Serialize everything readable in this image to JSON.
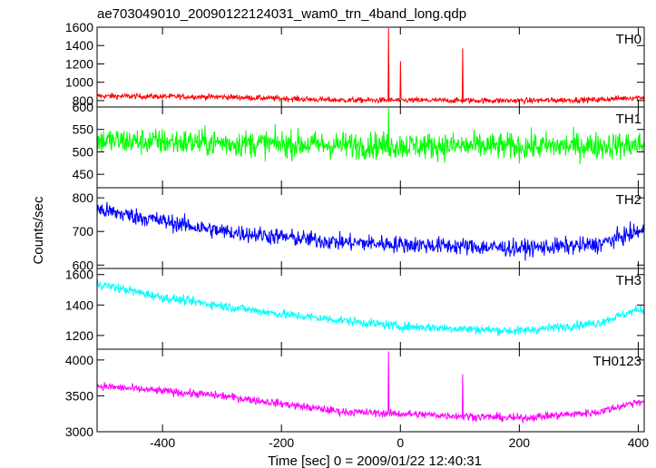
{
  "title": "ae703049010_20090122124031_wam0_trn_4band_long.qdp",
  "xlabel": "Time [sec] 0 = 2009/01/22 12:40:31",
  "ylabel": "Counts/sec",
  "chart_data": {
    "type": "line",
    "xlim": [
      -510,
      410
    ],
    "x_ticks": [
      -400,
      -200,
      0,
      200,
      400
    ],
    "panels": [
      {
        "name": "TH0",
        "color": "#ff0000",
        "ylim": [
          730,
          1600
        ],
        "y_ticks": [
          800,
          1000,
          1200,
          1400,
          1600
        ],
        "baseline": [
          [
            -510,
            850
          ],
          [
            -300,
            840
          ],
          [
            -100,
            805
          ],
          [
            200,
            800
          ],
          [
            330,
            810
          ],
          [
            400,
            835
          ]
        ],
        "noise": 30,
        "spikes": [
          [
            -20,
            1590
          ],
          [
            0,
            1230
          ],
          [
            105,
            1370
          ]
        ]
      },
      {
        "name": "TH1",
        "color": "#00ff00",
        "ylim": [
          420,
          600
        ],
        "y_ticks": [
          450,
          500,
          550,
          600
        ],
        "baseline": [
          [
            -510,
            525
          ],
          [
            -100,
            515
          ],
          [
            200,
            512
          ],
          [
            400,
            515
          ]
        ],
        "noise": 30,
        "spikes": [
          [
            -20,
            600
          ]
        ]
      },
      {
        "name": "TH2",
        "color": "#0000ff",
        "ylim": [
          590,
          830
        ],
        "y_ticks": [
          600,
          700,
          800
        ],
        "baseline": [
          [
            -510,
            765
          ],
          [
            -300,
            700
          ],
          [
            -100,
            668
          ],
          [
            200,
            650
          ],
          [
            330,
            660
          ],
          [
            400,
            700
          ]
        ],
        "noise": 25,
        "spikes": []
      },
      {
        "name": "TH3",
        "color": "#00ffff",
        "ylim": [
          1110,
          1640
        ],
        "y_ticks": [
          1200,
          1400,
          1600
        ],
        "baseline": [
          [
            -510,
            1540
          ],
          [
            -400,
            1450
          ],
          [
            -200,
            1340
          ],
          [
            0,
            1260
          ],
          [
            200,
            1230
          ],
          [
            330,
            1280
          ],
          [
            400,
            1370
          ]
        ],
        "noise": 30,
        "spikes": []
      },
      {
        "name": "TH0123",
        "color": "#ff00ff",
        "ylim": [
          3000,
          4150
        ],
        "y_ticks": [
          3000,
          3500,
          4000
        ],
        "baseline": [
          [
            -510,
            3640
          ],
          [
            -300,
            3500
          ],
          [
            -100,
            3280
          ],
          [
            200,
            3190
          ],
          [
            330,
            3270
          ],
          [
            400,
            3420
          ]
        ],
        "noise": 55,
        "spikes": [
          [
            -20,
            4120
          ],
          [
            105,
            3800
          ]
        ]
      }
    ]
  }
}
